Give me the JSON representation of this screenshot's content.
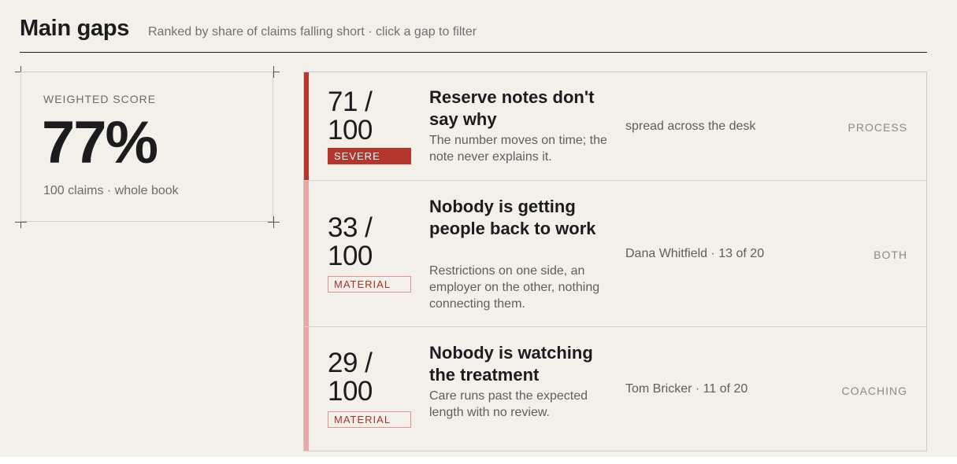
{
  "header": {
    "title": "Main gaps",
    "subtitle": "Ranked by share of claims falling short · click a gap to filter"
  },
  "score_card": {
    "label": "WEIGHTED SCORE",
    "value": "77%",
    "meta": "100 claims · whole book"
  },
  "colors": {
    "severe": "#b5362c",
    "material_accent": "#e8a9a4",
    "background": "#f3f0ea"
  },
  "gaps": [
    {
      "score_line1": "71 /",
      "score_line2": "100",
      "severity": "SEVERE",
      "title": "Reserve notes don't say why",
      "description": "The number moves on time; the note never explains it.",
      "owner": "spread across the desk",
      "category": "PROCESS"
    },
    {
      "score_line1": "33 /",
      "score_line2": "100",
      "severity": "MATERIAL",
      "title": "Nobody is getting people back to work",
      "description": "Restrictions on one side, an employer on the other, nothing connecting them.",
      "owner": "Dana Whitfield · 13 of 20",
      "category": "BOTH"
    },
    {
      "score_line1": "29 /",
      "score_line2": "100",
      "severity": "MATERIAL",
      "title": "Nobody is watching the treatment",
      "description": "Care runs past the expected length with no review.",
      "owner": "Tom Bricker · 11 of 20",
      "category": "COACHING"
    }
  ]
}
